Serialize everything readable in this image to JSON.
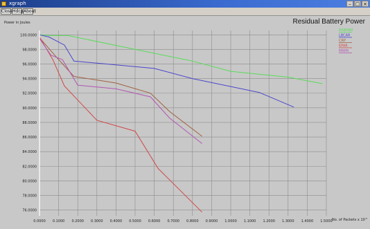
{
  "window": {
    "title": "xgraph",
    "minimize": "–",
    "maximize": "□",
    "close": "×"
  },
  "menu": [
    "Close",
    "Hdcpy",
    "About"
  ],
  "chart_data": {
    "type": "line",
    "title": "Residual Battery Power",
    "ylabel": "Power in Joules",
    "xlabel": "No. of Packets x 10^",
    "x_ticks": [
      "0.0000",
      "0.1000",
      "0.2000",
      "0.3000",
      "0.4000",
      "0.5000",
      "0.6000",
      "0.7000",
      "0.8000",
      "0.9000",
      "1.0000",
      "1.1000",
      "1.2000",
      "1.3000",
      "1.4000",
      "1.5000"
    ],
    "y_ticks": [
      "100.0000",
      "98.0000",
      "96.0000",
      "94.0000",
      "92.0000",
      "90.0000",
      "88.0000",
      "86.0000",
      "84.0000",
      "82.0000",
      "80.0000",
      "78.0000",
      "76.0000"
    ],
    "xlim": [
      0,
      1.5
    ],
    "ylim": [
      75.2,
      100.6
    ],
    "grid": true,
    "legend_position": "top-right",
    "series": [
      {
        "name": "EABPAM",
        "color": "#58dc58",
        "points": [
          [
            0,
            100
          ],
          [
            0.05,
            99.9
          ],
          [
            0.15,
            99.9
          ],
          [
            0.5,
            98.0
          ],
          [
            0.8,
            96.4
          ],
          [
            1.0,
            95.0
          ],
          [
            1.3,
            94.2
          ],
          [
            1.48,
            93.3
          ]
        ]
      },
      {
        "name": "LBCAR",
        "color": "#4a46cc",
        "points": [
          [
            0,
            100
          ],
          [
            0.05,
            99.7
          ],
          [
            0.13,
            98.6
          ],
          [
            0.18,
            96.4
          ],
          [
            0.35,
            96.0
          ],
          [
            0.6,
            95.4
          ],
          [
            0.8,
            94.0
          ],
          [
            1.15,
            92.1
          ],
          [
            1.33,
            90.1
          ]
        ]
      },
      {
        "name": "CRP",
        "color": "#a06040",
        "points": [
          [
            0,
            99.6
          ],
          [
            0.08,
            97.2
          ],
          [
            0.18,
            94.3
          ],
          [
            0.4,
            93.4
          ],
          [
            0.58,
            92.0
          ],
          [
            0.68,
            89.5
          ],
          [
            0.85,
            86.1
          ]
        ]
      },
      {
        "name": "EPAR",
        "color": "#d04848",
        "points": [
          [
            0,
            99.7
          ],
          [
            0.07,
            96.6
          ],
          [
            0.13,
            93.0
          ],
          [
            0.3,
            88.3
          ],
          [
            0.5,
            86.8
          ],
          [
            0.62,
            81.7
          ],
          [
            0.85,
            75.7
          ]
        ]
      },
      {
        "name": "MRPR",
        "color": "#b256b2",
        "points": [
          [
            0,
            99.5
          ],
          [
            0.06,
            97.2
          ],
          [
            0.12,
            96.6
          ],
          [
            0.2,
            93.1
          ],
          [
            0.4,
            92.6
          ],
          [
            0.58,
            91.5
          ],
          [
            0.68,
            88.6
          ],
          [
            0.85,
            85.1
          ]
        ]
      }
    ]
  }
}
